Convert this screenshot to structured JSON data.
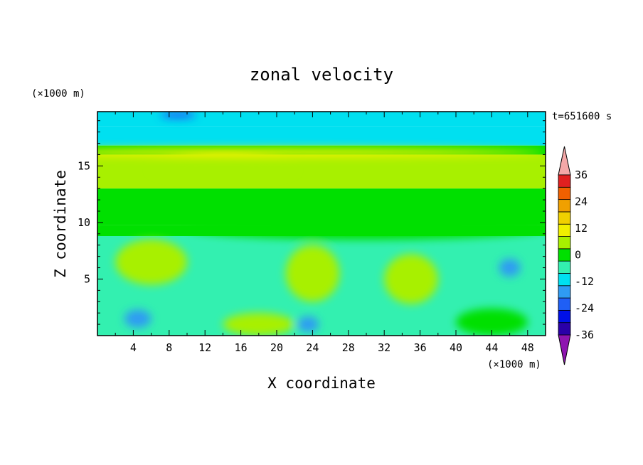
{
  "chart_data": {
    "type": "heatmap",
    "title": "zonal velocity",
    "subtitle": "t=651600 s",
    "xlabel": "X coordinate",
    "ylabel": "Z coordinate",
    "x_unit": "(×1000 m)",
    "y_unit": "(×1000 m)",
    "xlim": [
      0,
      50
    ],
    "ylim": [
      0,
      19.8
    ],
    "xticks": [
      4,
      8,
      12,
      16,
      20,
      24,
      28,
      32,
      36,
      40,
      44,
      48
    ],
    "yticks": [
      5,
      10,
      15
    ],
    "grid": false,
    "colorbar": {
      "levels": [
        -42,
        -36,
        -30,
        -24,
        -18,
        -12,
        -6,
        0,
        6,
        12,
        18,
        24,
        30,
        36,
        42
      ],
      "tick_labels": [
        "36",
        "24",
        "12",
        "0",
        "-12",
        "-24",
        "-36"
      ],
      "tick_values": [
        36,
        24,
        12,
        0,
        -12,
        -24,
        -36
      ],
      "colors": [
        "#6a1a9a",
        "#2a00a8",
        "#0010e6",
        "#1f5ff5",
        "#2f9bf3",
        "#00e0f0",
        "#33f0b0",
        "#00e000",
        "#a8f000",
        "#f0f000",
        "#f0d000",
        "#f0a000",
        "#f06000",
        "#e02020",
        "#f0a0a0"
      ],
      "under_color": "#8e14b0",
      "over_color": "#f4a8a8"
    },
    "field_description_bands": [
      {
        "z": [
          18.5,
          19.8
        ],
        "value": -12
      },
      {
        "z": [
          16.8,
          18.5
        ],
        "value": -8
      },
      {
        "z": [
          16.0,
          16.8
        ],
        "value": 2
      },
      {
        "z": [
          13.0,
          16.0
        ],
        "value": 8
      },
      {
        "z": [
          9.8,
          13.0
        ],
        "value": 4
      },
      {
        "z": [
          8.8,
          9.8
        ],
        "value": 0
      },
      {
        "z": [
          0,
          8.8
        ],
        "value": -6
      }
    ],
    "features": [
      {
        "x": 6,
        "z": 6.5,
        "rx": 4,
        "rz": 2,
        "value": 6
      },
      {
        "x": 24,
        "z": 5.5,
        "rx": 3,
        "rz": 2.5,
        "value": 7
      },
      {
        "x": 35,
        "z": 5,
        "rx": 3,
        "rz": 2.2,
        "value": 6
      },
      {
        "x": 18,
        "z": 1,
        "rx": 4,
        "rz": 1,
        "value": 6
      },
      {
        "x": 44,
        "z": 1.2,
        "rx": 4,
        "rz": 1.2,
        "value": 4
      },
      {
        "x": 4.5,
        "z": 1.5,
        "rx": 1.5,
        "rz": 0.8,
        "value": -18
      },
      {
        "x": 23.5,
        "z": 1.0,
        "rx": 1.2,
        "rz": 0.7,
        "value": -18
      },
      {
        "x": 46,
        "z": 6,
        "rx": 1.2,
        "rz": 0.8,
        "value": -18
      },
      {
        "x": 9,
        "z": 19.5,
        "rx": 2,
        "rz": 0.3,
        "value": -20
      },
      {
        "x": 20,
        "z": 16.2,
        "rx": 30,
        "rz": 0.4,
        "value": 12
      },
      {
        "x": 14,
        "z": 14.8,
        "rx": 8,
        "rz": 1.0,
        "value": 10
      },
      {
        "x": 30,
        "z": 9.5,
        "rx": 20,
        "rz": 1.0,
        "value": 2
      }
    ]
  }
}
